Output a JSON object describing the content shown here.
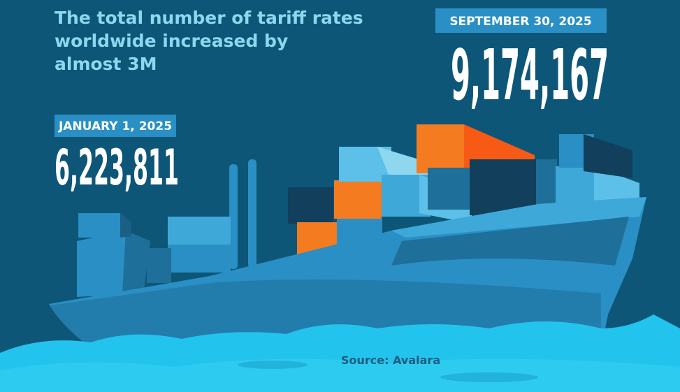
{
  "headline": [
    "The total number of tariff rates",
    "worldwide increased by",
    "almost 3M"
  ],
  "stats": [
    {
      "date": "JANUARY 1, 2025",
      "value": "6,223,811"
    },
    {
      "date": "SEPTEMBER 30, 2025",
      "value": "9,174,167"
    }
  ],
  "source": "Source: Avalara"
}
